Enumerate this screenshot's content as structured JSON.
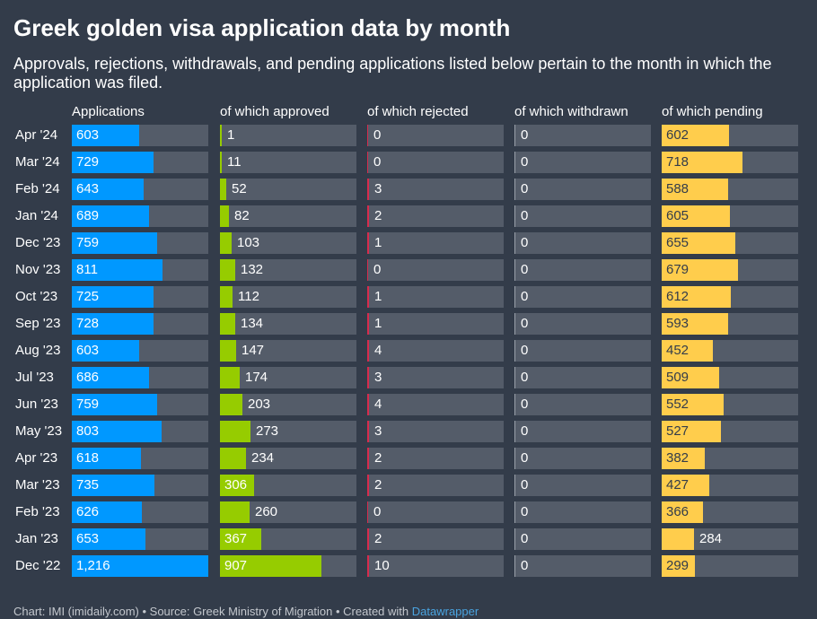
{
  "title": "Greek golden visa application data by month",
  "subtitle": "Approvals, rejections, withdrawals, and pending applications listed below pertain to the month in which the application was filed.",
  "footer": {
    "credit": "Chart: IMI (imidaily.com) • Source: Greek Ministry of Migration • Created with ",
    "tool": "Datawrapper"
  },
  "colors": {
    "background": "#333c4a",
    "track": "#545c69",
    "applications": "#0098ff",
    "approved": "#96cc00",
    "rejected": "#d62b4d",
    "withdrawn": "#9aa1aa",
    "pending": "#ffcd4c"
  },
  "chart_data": {
    "type": "table",
    "categories": [
      "Apr '24",
      "Mar '24",
      "Feb '24",
      "Jan '24",
      "Dec '23",
      "Nov '23",
      "Oct '23",
      "Sep '23",
      "Aug '23",
      "Jul '23",
      "Jun '23",
      "May '23",
      "Apr '23",
      "Mar '23",
      "Feb '23",
      "Jan '23",
      "Dec '22"
    ],
    "columns": [
      {
        "key": "applications",
        "label": "Applications",
        "max": 1216,
        "values": [
          603,
          729,
          643,
          689,
          759,
          811,
          725,
          728,
          603,
          686,
          759,
          803,
          618,
          735,
          626,
          653,
          1216
        ],
        "display": [
          "603",
          "729",
          "643",
          "689",
          "759",
          "811",
          "725",
          "728",
          "603",
          "686",
          "759",
          "803",
          "618",
          "735",
          "626",
          "653",
          "1,216"
        ]
      },
      {
        "key": "approved",
        "label": "of which approved",
        "max": 1216,
        "values": [
          1,
          11,
          52,
          82,
          103,
          132,
          112,
          134,
          147,
          174,
          203,
          273,
          234,
          306,
          260,
          367,
          907
        ],
        "display": [
          "1",
          "11",
          "52",
          "82",
          "103",
          "132",
          "112",
          "134",
          "147",
          "174",
          "203",
          "273",
          "234",
          "306",
          "260",
          "367",
          "907"
        ]
      },
      {
        "key": "rejected",
        "label": "of which rejected",
        "max": 1216,
        "values": [
          0,
          0,
          3,
          2,
          1,
          0,
          1,
          1,
          4,
          3,
          4,
          3,
          2,
          2,
          0,
          2,
          10
        ],
        "display": [
          "0",
          "0",
          "3",
          "2",
          "1",
          "0",
          "1",
          "1",
          "4",
          "3",
          "4",
          "3",
          "2",
          "2",
          "0",
          "2",
          "10"
        ]
      },
      {
        "key": "withdrawn",
        "label": "of which withdrawn",
        "max": 1216,
        "values": [
          0,
          0,
          0,
          0,
          0,
          0,
          0,
          0,
          0,
          0,
          0,
          0,
          0,
          0,
          0,
          0,
          0
        ],
        "display": [
          "0",
          "0",
          "0",
          "0",
          "0",
          "0",
          "0",
          "0",
          "0",
          "0",
          "0",
          "0",
          "0",
          "0",
          "0",
          "0",
          "0"
        ]
      },
      {
        "key": "pending",
        "label": "of which pending",
        "max": 1216,
        "values": [
          602,
          718,
          588,
          605,
          655,
          679,
          612,
          593,
          452,
          509,
          552,
          527,
          382,
          427,
          366,
          284,
          299
        ],
        "display": [
          "602",
          "718",
          "588",
          "605",
          "655",
          "679",
          "612",
          "593",
          "452",
          "509",
          "552",
          "527",
          "382",
          "427",
          "366",
          "284",
          "299"
        ]
      }
    ]
  }
}
